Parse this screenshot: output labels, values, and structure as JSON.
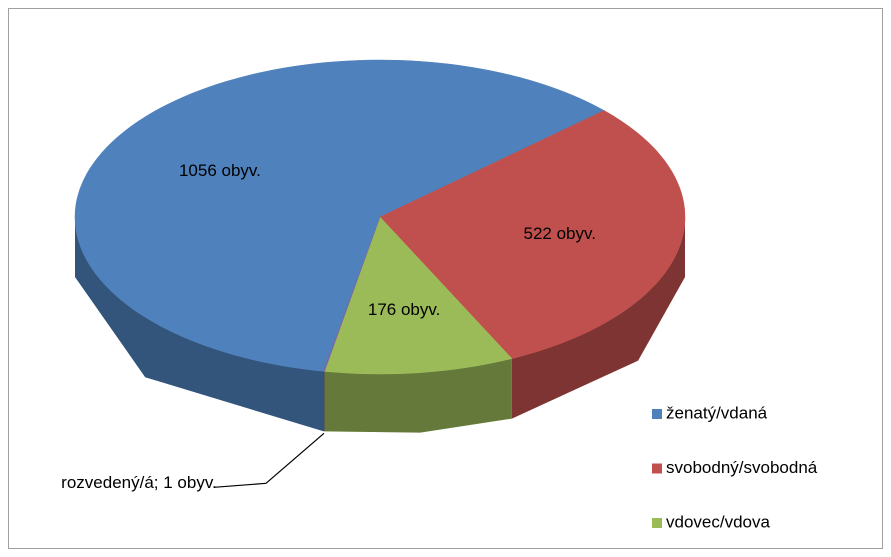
{
  "chart_data": {
    "type": "pie3d",
    "slices": [
      {
        "name": "ženatý/vdaná",
        "value": 1056,
        "value_label": "1056 obyv.",
        "color": "#4f81bd",
        "in_legend": true
      },
      {
        "name": "svobodný/svobodná",
        "value": 522,
        "value_label": "522 obyv.",
        "color": "#c0504d",
        "in_legend": true
      },
      {
        "name": "vdovec/vdova",
        "value": 176,
        "value_label": "176 obyv.",
        "color": "#9bbb59",
        "in_legend": true
      },
      {
        "name": "rozvedený/á",
        "value": 1,
        "value_label": "rozvedený/á; 1 obyv.",
        "color": "#8064a2",
        "in_legend": false
      }
    ],
    "start_slice": 1,
    "legend": "right-bottom"
  }
}
